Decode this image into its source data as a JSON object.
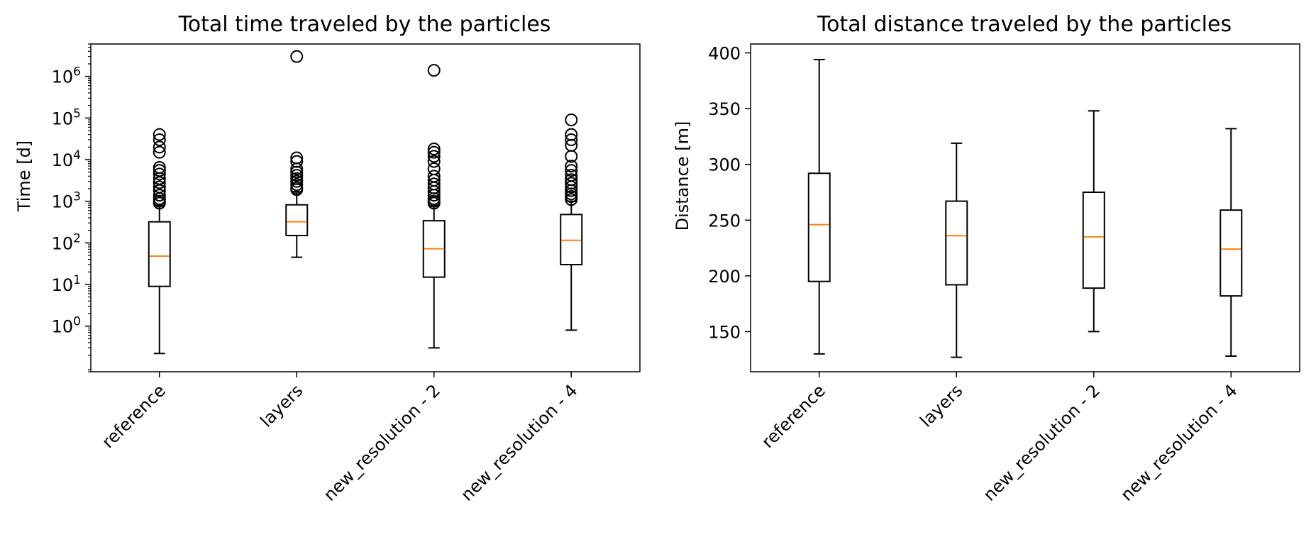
{
  "chart_data": [
    {
      "type": "box",
      "title": "Total time traveled by the particles",
      "ylabel": "Time [d]",
      "yscale": "log",
      "ylim": [
        0.08,
        6000000
      ],
      "yticks": [
        1,
        10,
        100,
        1000,
        10000,
        100000,
        1000000
      ],
      "yticklabels": [
        {
          "base": "10",
          "exp": "0"
        },
        {
          "base": "10",
          "exp": "1"
        },
        {
          "base": "10",
          "exp": "2"
        },
        {
          "base": "10",
          "exp": "3"
        },
        {
          "base": "10",
          "exp": "4"
        },
        {
          "base": "10",
          "exp": "5"
        },
        {
          "base": "10",
          "exp": "6"
        }
      ],
      "categories": [
        "reference",
        "layers",
        "new_resolution - 2",
        "new_resolution - 4"
      ],
      "boxes": [
        {
          "whislo": 0.22,
          "q1": 9,
          "med": 48,
          "q3": 320,
          "whishi": 800,
          "fliers": [
            900,
            1000,
            1150,
            1400,
            1800,
            2200,
            2800,
            3500,
            4500,
            5500,
            6500,
            15000,
            20000,
            30000,
            40000
          ]
        },
        {
          "whislo": 45,
          "q1": 150,
          "med": 320,
          "q3": 820,
          "whishi": 1700,
          "fliers": [
            1900,
            2100,
            2500,
            3000,
            3500,
            4200,
            5000,
            6000,
            9000,
            11000,
            3000000
          ]
        },
        {
          "whislo": 0.3,
          "q1": 15,
          "med": 72,
          "q3": 340,
          "whishi": 800,
          "fliers": [
            900,
            1000,
            1150,
            1400,
            1700,
            2100,
            2600,
            3200,
            4000,
            6000,
            9000,
            12000,
            15000,
            18000,
            1400000
          ]
        },
        {
          "whislo": 0.8,
          "q1": 30,
          "med": 115,
          "q3": 480,
          "whishi": 1000,
          "fliers": [
            1100,
            1300,
            1500,
            1800,
            2200,
            2700,
            3300,
            4200,
            5500,
            7000,
            12000,
            22000,
            30000,
            40000,
            90000
          ]
        }
      ],
      "colors": {
        "box": "#000000",
        "median": "#ff7f0e",
        "flier": "#000000"
      }
    },
    {
      "type": "box",
      "title": "Total distance traveled by the particles",
      "ylabel": "Distance [m]",
      "yscale": "linear",
      "ylim": [
        114,
        408
      ],
      "yticks": [
        150,
        200,
        250,
        300,
        350,
        400
      ],
      "categories": [
        "reference",
        "layers",
        "new_resolution - 2",
        "new_resolution - 4"
      ],
      "boxes": [
        {
          "whislo": 130,
          "q1": 195,
          "med": 246,
          "q3": 292,
          "whishi": 394,
          "fliers": []
        },
        {
          "whislo": 127,
          "q1": 192,
          "med": 236,
          "q3": 267,
          "whishi": 319,
          "fliers": []
        },
        {
          "whislo": 150,
          "q1": 189,
          "med": 235,
          "q3": 275,
          "whishi": 348,
          "fliers": []
        },
        {
          "whislo": 128,
          "q1": 182,
          "med": 224,
          "q3": 259,
          "whishi": 332,
          "fliers": []
        }
      ],
      "colors": {
        "box": "#000000",
        "median": "#ff7f0e",
        "flier": "#000000"
      }
    }
  ]
}
